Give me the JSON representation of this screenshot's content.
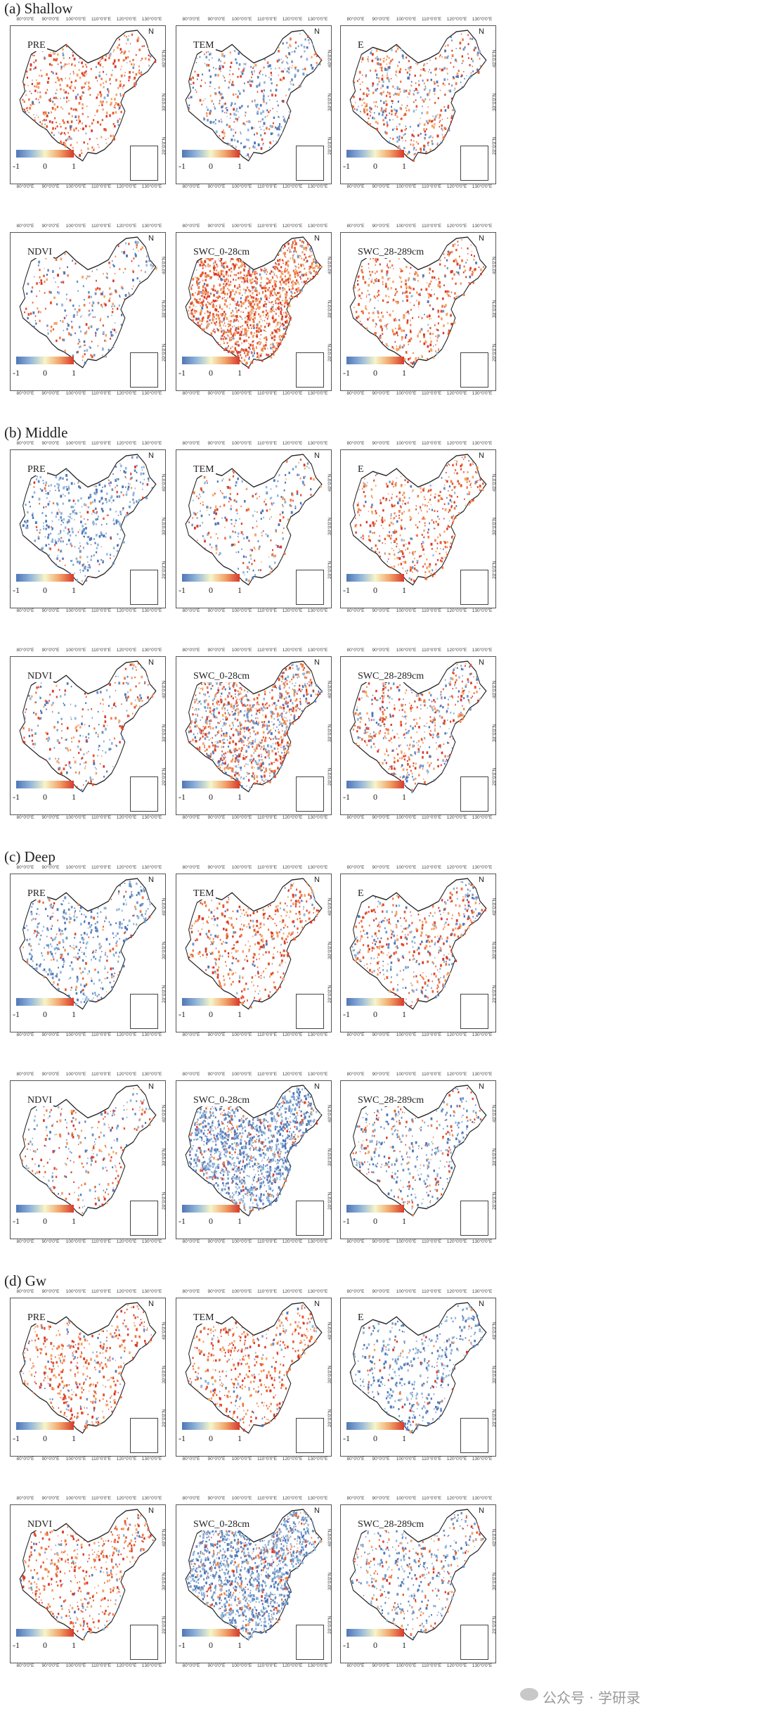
{
  "sections": [
    {
      "title": "(a) Shallow",
      "panels": [
        {
          "label": "PRE",
          "scheme": "pos"
        },
        {
          "label": "TEM",
          "scheme": "mixneg"
        },
        {
          "label": "E",
          "scheme": "mixpos"
        },
        {
          "label": "NDVI",
          "scheme": "sparse"
        },
        {
          "label": "SWC_0-28cm",
          "scheme": "strongpos"
        },
        {
          "label": "SWC_28-289cm",
          "scheme": "pos"
        }
      ]
    },
    {
      "title": "(b) Middle",
      "panels": [
        {
          "label": "PRE",
          "scheme": "neg"
        },
        {
          "label": "TEM",
          "scheme": "sparse"
        },
        {
          "label": "E",
          "scheme": "pos"
        },
        {
          "label": "NDVI",
          "scheme": "sparse"
        },
        {
          "label": "SWC_0-28cm",
          "scheme": "strongmix"
        },
        {
          "label": "SWC_28-289cm",
          "scheme": "mixpos"
        }
      ]
    },
    {
      "title": "(c) Deep",
      "panels": [
        {
          "label": "PRE",
          "scheme": "neg"
        },
        {
          "label": "TEM",
          "scheme": "pos"
        },
        {
          "label": "E",
          "scheme": "mixpos"
        },
        {
          "label": "NDVI",
          "scheme": "sparse"
        },
        {
          "label": "SWC_0-28cm",
          "scheme": "strongneg"
        },
        {
          "label": "SWC_28-289cm",
          "scheme": "mixneg"
        }
      ]
    },
    {
      "title": "(d) Gw",
      "panels": [
        {
          "label": "PRE",
          "scheme": "pos"
        },
        {
          "label": "TEM",
          "scheme": "pos"
        },
        {
          "label": "E",
          "scheme": "neg"
        },
        {
          "label": "NDVI",
          "scheme": "pos"
        },
        {
          "label": "SWC_0-28cm",
          "scheme": "strongneg"
        },
        {
          "label": "SWC_28-289cm",
          "scheme": "mixneg"
        }
      ]
    }
  ],
  "colorbar": {
    "ticks": [
      "-1",
      "0",
      "1"
    ],
    "colors": [
      "#4f76b7",
      "#f6f5c8",
      "#d83a2a"
    ]
  },
  "axes": {
    "lon_labels": [
      "80°0'0\"E",
      "90°0'0\"E",
      "100°0'0\"E",
      "110°0'0\"E",
      "120°0'0\"E",
      "130°0'0\"E"
    ],
    "lat_labels": [
      "40°0'0\"N",
      "30°0'0\"N",
      "20°0'0\"N"
    ],
    "north": "N"
  },
  "watermark": "公众号 · 学研录"
}
